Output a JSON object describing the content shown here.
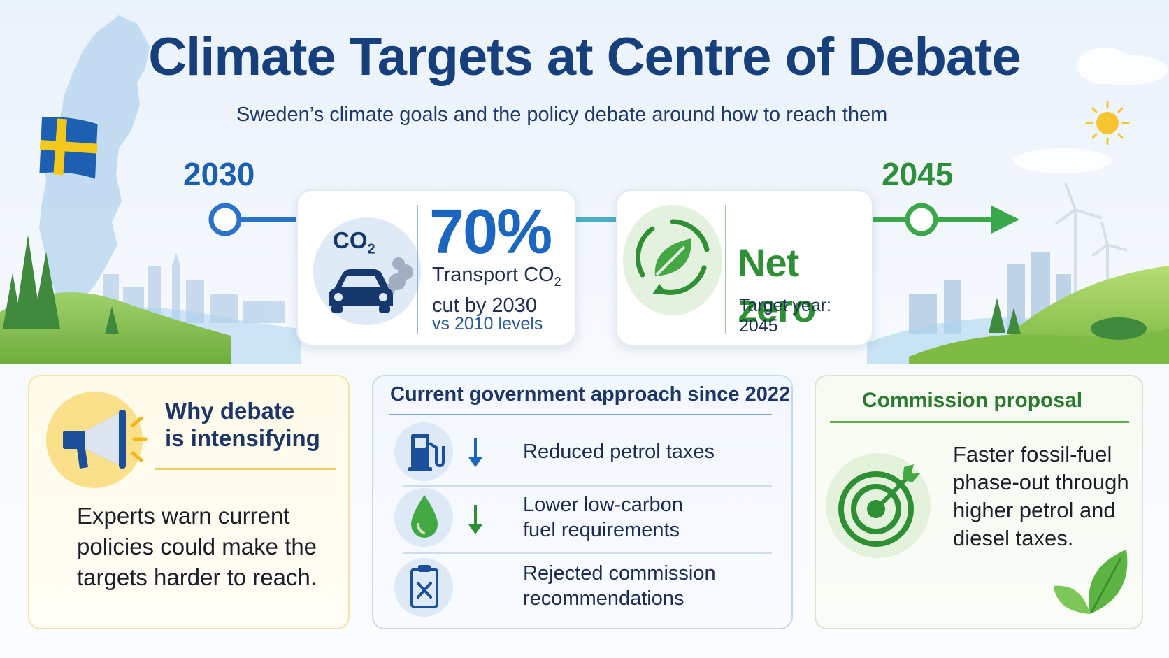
{
  "header": {
    "title": "Climate Targets at Centre of Debate",
    "subtitle": "Sweden’s climate goals and the policy debate around how to reach them"
  },
  "timeline": {
    "start_year": "2030",
    "end_year": "2045"
  },
  "transport_card": {
    "icon_label": "CO",
    "icon_label_sub": "2",
    "percent": "70%",
    "desc_line1": "Transport CO",
    "desc_line1_sub": "2",
    "desc_line2": "cut by 2030",
    "note": "vs 2010 levels"
  },
  "net_zero_card": {
    "title": "Net zero",
    "subtitle": "Target year: 2045"
  },
  "why_panel": {
    "title_line1": "Why debate",
    "title_line2": "is intensifying",
    "body": "Experts warn current policies could make the targets harder to reach."
  },
  "gov_panel": {
    "title": "Current government approach since 2022",
    "items": [
      {
        "line1": "Reduced petrol taxes",
        "line2": ""
      },
      {
        "line1": "Lower low-carbon",
        "line2": "fuel requirements"
      },
      {
        "line1": "Rejected commission",
        "line2": "recommendations"
      }
    ]
  },
  "commission_panel": {
    "title": "Commission proposal",
    "body": "Faster fossil-fuel phase-out through higher petrol and diesel taxes."
  },
  "icons": {
    "map": "sweden-map-icon",
    "flag": "swedish-flag-icon",
    "car": "car-emission-icon",
    "leaf_cycle": "leaf-cycle-icon",
    "megaphone": "megaphone-icon",
    "fuel_pump": "fuel-pump-icon",
    "drop": "fuel-drop-icon",
    "clipboard": "rejected-clipboard-icon",
    "target": "target-arrow-icon",
    "sun": "sun-icon",
    "turbine": "wind-turbine-icon"
  },
  "colors": {
    "title_blue": "#173f7c",
    "accent_blue": "#1b66bf",
    "accent_green": "#2f8f34",
    "timeline_blue": "#2a73c8",
    "timeline_green": "#3aa84a",
    "flag_blue": "#1d5fb0",
    "flag_yellow": "#f2c81c"
  }
}
